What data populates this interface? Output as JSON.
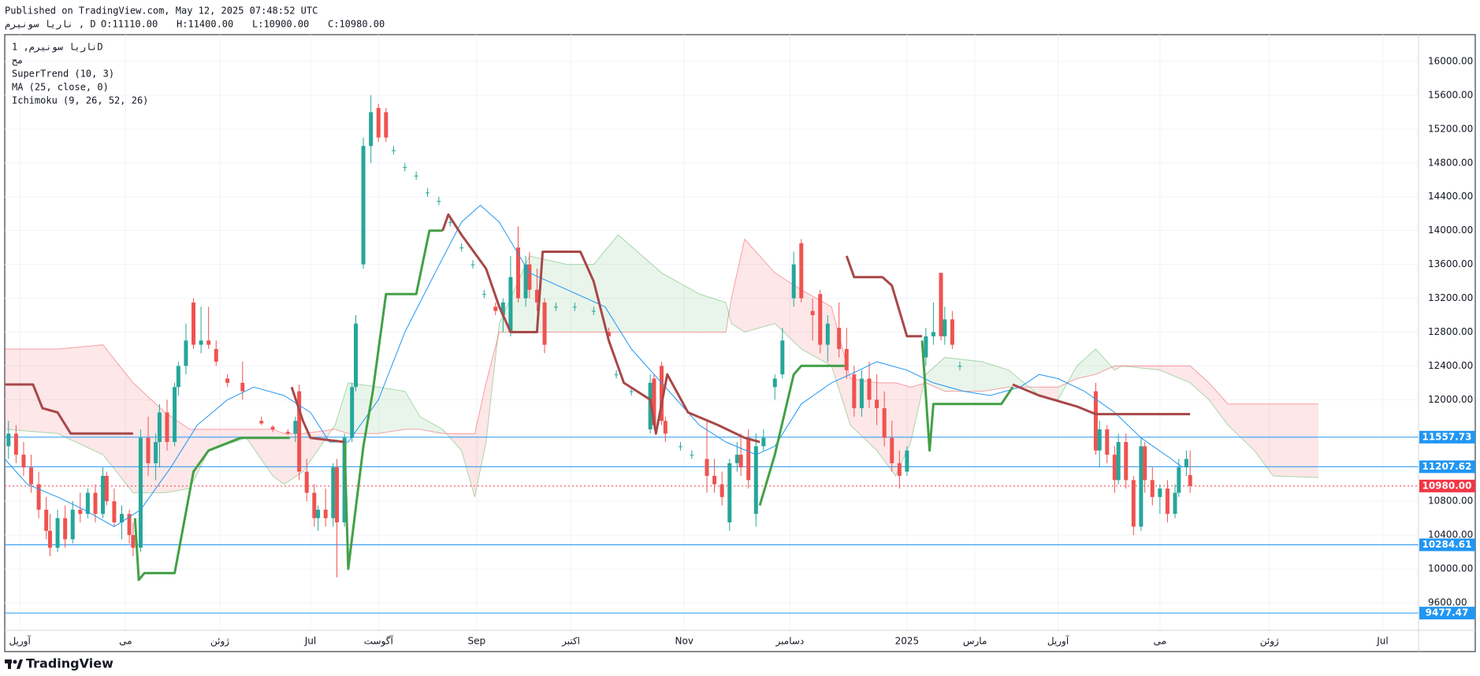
{
  "header": {
    "published": "Published on TradingView.com, May 12, 2025 07:48:52 UTC",
    "symbol": "ناریا سونیرم , D",
    "ohlc": [
      "O:11110.00",
      "H:11400.00",
      "L:10900.00",
      "C:10980.00"
    ]
  },
  "footer": {
    "logo": "TradingView"
  },
  "chart_data": {
    "type": "candlestick",
    "legend": [
      "ناریا سونیرم, 1D",
      "مح",
      "SuperTrend (10, 3)",
      "MA (25, close, 0)",
      "Ichimoku (9, 26, 52, 26)"
    ],
    "grid": true,
    "xlim": [
      0,
      374.5
    ],
    "ylim": [
      9274,
      16307
    ],
    "xticks": [
      {
        "value": 4,
        "label": "آوریل"
      },
      {
        "value": 32,
        "label": "می"
      },
      {
        "value": 57,
        "label": "ژوئن"
      },
      {
        "value": 81,
        "label": "Jul"
      },
      {
        "value": 99,
        "label": "آگوست"
      },
      {
        "value": 125,
        "label": "Sep"
      },
      {
        "value": 150,
        "label": "اکتبر"
      },
      {
        "value": 180,
        "label": "Nov"
      },
      {
        "value": 208,
        "label": "دسامبر"
      },
      {
        "value": 239,
        "label": "2025"
      },
      {
        "value": 257,
        "label": "مارس"
      },
      {
        "value": 279,
        "label": "آوریل"
      },
      {
        "value": 306,
        "label": "می"
      },
      {
        "value": 335,
        "label": "ژوئن"
      },
      {
        "value": 365,
        "label": "Jul"
      }
    ],
    "yticks": [
      {
        "value": 9600,
        "label": "9600.00"
      },
      {
        "value": 10000,
        "label": "10000.00"
      },
      {
        "value": 10400,
        "label": "10400.00"
      },
      {
        "value": 10800,
        "label": "10800.00"
      },
      {
        "value": 12000,
        "label": "12000.00"
      },
      {
        "value": 12400,
        "label": "12400.00"
      },
      {
        "value": 12800,
        "label": "12800.00"
      },
      {
        "value": 13200,
        "label": "13200.00"
      },
      {
        "value": 13600,
        "label": "13600.00"
      },
      {
        "value": 14000,
        "label": "14000.00"
      },
      {
        "value": 14400,
        "label": "14400.00"
      },
      {
        "value": 14800,
        "label": "14800.00"
      },
      {
        "value": 15200,
        "label": "15200.00"
      },
      {
        "value": 15600,
        "label": "15600.00"
      },
      {
        "value": 16000,
        "label": "16000.00"
      }
    ],
    "cloud": {
      "up_color": "#4caf50",
      "down_color": "#f23645",
      "x": [
        0,
        14,
        26,
        34,
        42.5,
        49,
        54,
        64,
        71,
        74,
        79,
        87.5,
        91,
        99,
        106,
        110,
        116,
        121,
        124.5,
        127.5,
        131,
        139,
        149,
        156,
        162.5,
        174,
        184,
        191,
        192.5,
        196,
        204,
        211,
        219,
        224,
        231,
        236,
        240,
        244,
        249,
        259,
        266,
        274,
        279,
        284,
        289,
        294,
        296,
        306,
        314,
        319,
        324,
        331,
        336,
        348
      ],
      "span_a": [
        11650,
        11600,
        11350,
        10900,
        10900,
        10950,
        11400,
        11550,
        11100,
        11000,
        11150,
        11700,
        12200,
        12150,
        12100,
        11800,
        11650,
        11400,
        10850,
        11500,
        12900,
        13700,
        13600,
        13600,
        13950,
        13500,
        13250,
        13150,
        12900,
        12800,
        12900,
        12600,
        12400,
        11700,
        11400,
        11100,
        11500,
        12300,
        12500,
        12450,
        12350,
        12050,
        12000,
        12400,
        12600,
        12350,
        12400,
        12350,
        12200,
        12000,
        11700,
        11400,
        11100,
        11080
      ],
      "span_b": [
        12600,
        12600,
        12650,
        12200,
        11850,
        11650,
        11650,
        11650,
        11650,
        11600,
        11600,
        11650,
        11600,
        11600,
        11650,
        11650,
        11600,
        11600,
        11600,
        12200,
        12800,
        12800,
        12800,
        12800,
        12800,
        12800,
        12800,
        12800,
        13200,
        13900,
        13500,
        13300,
        13100,
        12250,
        12200,
        12200,
        12150,
        12200,
        12100,
        12100,
        12150,
        12150,
        12150,
        12250,
        12300,
        12400,
        12400,
        12400,
        12400,
        12200,
        11950,
        11950,
        11950,
        11950
      ]
    },
    "lines": [
      {
        "color": "#2196f3",
        "width": 1,
        "x": [
          0,
          6,
          14,
          21,
          29,
          36,
          44,
          51,
          59,
          66,
          74,
          81,
          86,
          91,
          99,
          106,
          114,
          121,
          126,
          131,
          139,
          149,
          159,
          166,
          174,
          184,
          191,
          199,
          204,
          211,
          219,
          224,
          231,
          239,
          246,
          254,
          261,
          269,
          274,
          279,
          286,
          294,
          301,
          309,
          312
        ],
        "values": [
          11300,
          11000,
          10850,
          10700,
          10500,
          10700,
          11200,
          11700,
          12000,
          12150,
          12050,
          11850,
          11500,
          11500,
          12000,
          12800,
          13500,
          14100,
          14300,
          14100,
          13500,
          13300,
          13100,
          12600,
          12200,
          11700,
          11500,
          11350,
          11450,
          11950,
          12200,
          12300,
          12450,
          12350,
          12200,
          12100,
          12050,
          12150,
          12300,
          12250,
          12100,
          11850,
          11550,
          11300,
          11200
        ]
      },
      {
        "color": "#43a047",
        "width": 3,
        "x": [
          34.5,
          35.5,
          37,
          45,
          50,
          54,
          62.5,
          75.5,
          null,
          90,
          91,
          95,
          97.5,
          101,
          109,
          112.5,
          116,
          null,
          200,
          204,
          209,
          211,
          222.5,
          null,
          243,
          245,
          246,
          264,
          267
        ],
        "values": [
          10600,
          9870,
          9950,
          9950,
          11150,
          11400,
          11550,
          11550,
          null,
          11500,
          10000,
          11450,
          12100,
          13250,
          13250,
          14000,
          14000,
          null,
          10750,
          11350,
          12300,
          12400,
          12400,
          null,
          12700,
          11400,
          11950,
          11950,
          12150
        ]
      },
      {
        "color": "#a84848",
        "width": 3,
        "x": [
          0,
          7.5,
          10,
          14,
          17.5,
          34,
          null,
          76,
          79,
          81,
          90,
          null,
          116,
          117.5,
          121,
          127.5,
          131,
          134,
          141,
          142.5,
          152.5,
          156,
          160,
          164,
          171,
          172.5,
          175.5,
          181,
          189,
          196,
          200,
          null,
          223,
          225,
          232.5,
          235,
          239,
          243,
          null,
          267,
          274,
          284,
          289,
          314
        ],
        "values": [
          12180,
          12180,
          11900,
          11850,
          11600,
          11600,
          null,
          12150,
          11750,
          11550,
          11500,
          null,
          14000,
          14190,
          13950,
          13550,
          13100,
          12800,
          12800,
          13750,
          13750,
          13400,
          12700,
          12200,
          12000,
          11600,
          12300,
          11850,
          11700,
          11550,
          11500,
          null,
          13700,
          13450,
          13450,
          13350,
          12750,
          12750,
          null,
          12180,
          12050,
          11920,
          11830,
          11830
        ]
      }
    ],
    "hlines": [
      {
        "value": 11557.73,
        "color": "#2196f3"
      },
      {
        "value": 11207.62,
        "color": "#2196f3"
      },
      {
        "value": 10284.61,
        "color": "#2196f3"
      },
      {
        "value": 9477.47,
        "color": "#2196f3"
      },
      {
        "value": 10980,
        "label": "10980.00",
        "color": "#f23645",
        "dashed": true
      }
    ],
    "candles": {
      "up_color": "#26a69a",
      "down_color": "#ef5350",
      "x": [
        1,
        3,
        5,
        7,
        9,
        11,
        12,
        14,
        16,
        18,
        20,
        22,
        24,
        26,
        27,
        29,
        31,
        33,
        34,
        36,
        38,
        40,
        41,
        43,
        45,
        46,
        48,
        50,
        52,
        54,
        56,
        59,
        63,
        68,
        71,
        75,
        77,
        78,
        80,
        82,
        83,
        85,
        87,
        88,
        90,
        92,
        93,
        95,
        97,
        99,
        101,
        103,
        106,
        109,
        112,
        115,
        118,
        121,
        124,
        127,
        130,
        132,
        134,
        136,
        138,
        139,
        141,
        143,
        146,
        151,
        156,
        160,
        162,
        166,
        171,
        172,
        174,
        175,
        179,
        182,
        186,
        188,
        190,
        192,
        194,
        195,
        197,
        199,
        201,
        204,
        206,
        209,
        211,
        214,
        216,
        218,
        221,
        223,
        225,
        227,
        229,
        231,
        233,
        235,
        237,
        239,
        244,
        246,
        248,
        249,
        251,
        253,
        289,
        290,
        292,
        294,
        295,
        297,
        299,
        301,
        302,
        304,
        306,
        308,
        310,
        311,
        313,
        314
      ],
      "open": [
        11450,
        11600,
        11350,
        11200,
        11000,
        10700,
        10450,
        10250,
        10600,
        10350,
        10700,
        10650,
        10900,
        10650,
        11100,
        10800,
        10550,
        10650,
        10400,
        10250,
        11550,
        11250,
        11500,
        11850,
        11500,
        12150,
        12400,
        13150,
        12650,
        12700,
        12600,
        12250,
        12200,
        11750,
        11680,
        11620,
        11600,
        12100,
        11150,
        10900,
        10600,
        10700,
        10600,
        11200,
        10550,
        11550,
        12150,
        13600,
        15000,
        15450,
        15400,
        14950,
        14750,
        14650,
        14450,
        14350,
        14100,
        13800,
        13600,
        13250,
        13100,
        13000,
        12800,
        13800,
        13200,
        13600,
        13300,
        13150,
        13100,
        13100,
        13050,
        12800,
        12300,
        12100,
        11650,
        12250,
        12400,
        11750,
        11450,
        11350,
        11300,
        11100,
        11000,
        10550,
        11250,
        11350,
        11550,
        10650,
        11450,
        12150,
        12300,
        13200,
        13850,
        13050,
        13250,
        12650,
        12850,
        12600,
        12300,
        11900,
        12250,
        12000,
        11900,
        11550,
        11250,
        11150,
        12500,
        12750,
        13500,
        12750,
        12950,
        12400,
        12100,
        11400,
        11650,
        11350,
        11050,
        11500,
        11050,
        10500,
        11450,
        11050,
        10850,
        10950,
        10650,
        10900,
        11200,
        11110
      ],
      "high": [
        11750,
        11700,
        11500,
        11350,
        11150,
        10850,
        10650,
        10700,
        10750,
        10800,
        10900,
        10950,
        11000,
        11200,
        11150,
        10950,
        10750,
        10700,
        10550,
        11650,
        11800,
        11600,
        11950,
        12000,
        12200,
        12450,
        12900,
        13200,
        13100,
        13100,
        12700,
        12300,
        12450,
        11800,
        11700,
        11650,
        11800,
        12180,
        11300,
        11000,
        10750,
        10950,
        11250,
        11300,
        11600,
        12200,
        13000,
        15100,
        15600,
        15500,
        15450,
        15000,
        14800,
        14700,
        14500,
        14400,
        14150,
        13850,
        13650,
        13300,
        13150,
        13200,
        13700,
        14050,
        13700,
        13750,
        13550,
        13200,
        13150,
        13150,
        13100,
        12850,
        12350,
        12150,
        12300,
        12300,
        12450,
        11800,
        11500,
        11400,
        11750,
        11300,
        11150,
        11300,
        11500,
        11600,
        11650,
        11600,
        11650,
        12300,
        12850,
        13750,
        13900,
        13200,
        13300,
        13000,
        13150,
        12850,
        12400,
        12350,
        12450,
        12300,
        12100,
        11750,
        11400,
        11450,
        12850,
        13150,
        13500,
        13100,
        13050,
        12450,
        12200,
        11750,
        11700,
        11450,
        11600,
        11600,
        11100,
        11550,
        11500,
        11200,
        11000,
        11050,
        11000,
        11300,
        11400,
        11400
      ],
      "low": [
        11300,
        11250,
        11100,
        10900,
        10600,
        10350,
        10150,
        10200,
        10250,
        10300,
        10550,
        10600,
        10550,
        10600,
        10750,
        10500,
        10350,
        10300,
        10150,
        10200,
        11100,
        11050,
        11200,
        11400,
        11450,
        12050,
        12300,
        12600,
        12550,
        12600,
        12400,
        12150,
        12000,
        11700,
        11620,
        11580,
        11500,
        11050,
        10800,
        10500,
        10450,
        10500,
        10500,
        9900,
        10500,
        11500,
        12100,
        13550,
        14800,
        15050,
        15050,
        14900,
        14700,
        14600,
        14400,
        14300,
        14050,
        13750,
        13550,
        13200,
        13000,
        12800,
        12750,
        13150,
        13100,
        13200,
        13050,
        12550,
        13050,
        13050,
        13000,
        12700,
        12250,
        12050,
        11600,
        11650,
        11700,
        11500,
        11400,
        11300,
        10900,
        10900,
        10750,
        10450,
        11150,
        11100,
        10950,
        10500,
        11400,
        12000,
        12250,
        13100,
        13150,
        12700,
        12550,
        12450,
        12500,
        12250,
        11800,
        11800,
        11900,
        11700,
        11450,
        11150,
        10950,
        11100,
        12400,
        12650,
        12700,
        12650,
        12600,
        12350,
        11350,
        11200,
        11250,
        10900,
        11000,
        10950,
        10400,
        10450,
        10900,
        10750,
        10650,
        10550,
        10600,
        10850,
        11100,
        10900
      ],
      "close": [
        11600,
        11350,
        11200,
        11000,
        10700,
        10450,
        10250,
        10600,
        10350,
        10700,
        10650,
        10900,
        10650,
        11100,
        10800,
        10550,
        10650,
        10400,
        10250,
        11550,
        11250,
        11500,
        11850,
        11500,
        12150,
        12400,
        12700,
        12650,
        12700,
        12650,
        12450,
        12200,
        12100,
        11720,
        11650,
        11600,
        11750,
        11150,
        10900,
        10600,
        10700,
        10600,
        11200,
        10550,
        11550,
        12150,
        12900,
        15000,
        15400,
        15100,
        15100,
        14950,
        14750,
        14650,
        14450,
        14350,
        14100,
        13800,
        13600,
        13250,
        13050,
        13150,
        13450,
        13200,
        13600,
        13300,
        13150,
        12650,
        13100,
        13100,
        13050,
        12750,
        12300,
        12100,
        12200,
        11700,
        11750,
        11600,
        11450,
        11350,
        11100,
        11000,
        10850,
        11250,
        11350,
        11200,
        11050,
        11450,
        11550,
        12250,
        12700,
        13600,
        13200,
        13000,
        12650,
        12900,
        12600,
        12350,
        11900,
        12250,
        12000,
        11900,
        11550,
        11250,
        11100,
        11400,
        12750,
        12800,
        12750,
        12950,
        12650,
        12400,
        11400,
        11650,
        11350,
        11050,
        11500,
        11050,
        10500,
        11450,
        11050,
        10850,
        10950,
        10650,
        10900,
        11200,
        11300,
        10980
      ]
    }
  }
}
